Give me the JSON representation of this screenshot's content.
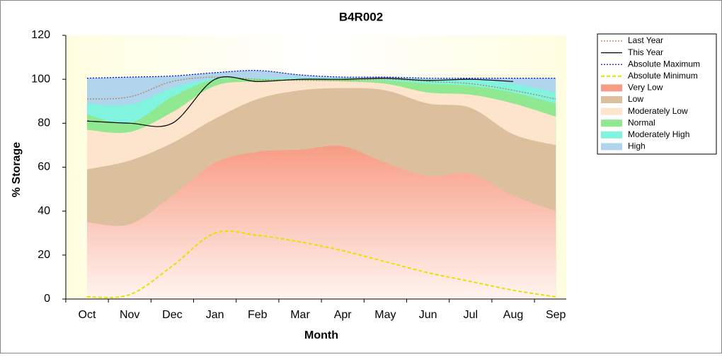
{
  "chart_data": {
    "type": "area",
    "title": "B4R002",
    "x_label": "Month",
    "y_label": "% Storage",
    "categories": [
      "Oct",
      "Nov",
      "Dec",
      "Jan",
      "Feb",
      "Mar",
      "Apr",
      "May",
      "Jun",
      "Jul",
      "Aug",
      "Sep"
    ],
    "ylim": [
      0,
      120
    ],
    "yticks": [
      0,
      20,
      40,
      60,
      80,
      100,
      120
    ],
    "series": [
      {
        "name": "Last Year",
        "kind": "line",
        "style": "dotted",
        "color": "#c07840",
        "values": [
          91,
          92,
          99,
          101,
          100,
          99.5,
          99.5,
          100,
          99,
          98,
          95,
          91
        ]
      },
      {
        "name": "This Year",
        "kind": "line",
        "style": "solid",
        "color": "#000000",
        "values": [
          81,
          80,
          80,
          100,
          99,
          100,
          100,
          100.5,
          99.5,
          100,
          99,
          null
        ]
      },
      {
        "name": "Absolute Maximum",
        "kind": "line",
        "style": "dotted",
        "color": "#0000c0",
        "values": [
          100.5,
          101,
          101.5,
          103,
          104,
          102,
          101,
          101,
          100.5,
          100.5,
          100.5,
          100.5
        ]
      },
      {
        "name": "Absolute Minimum",
        "kind": "line",
        "style": "dashed",
        "color": "#e8e000",
        "values": [
          1,
          2,
          15,
          30,
          29,
          26,
          22,
          17,
          12,
          8,
          4,
          1
        ]
      },
      {
        "name": "Very Low",
        "kind": "band",
        "color": "#f89c84",
        "values": [
          35,
          34,
          47,
          62,
          67,
          68,
          69.5,
          62,
          56,
          57,
          47,
          40
        ]
      },
      {
        "name": "Low",
        "kind": "band",
        "color": "#dcc09e",
        "values": [
          59,
          63,
          71,
          82,
          91,
          95,
          96,
          95,
          89,
          87,
          75,
          70
        ]
      },
      {
        "name": "Moderately Low",
        "kind": "band",
        "color": "#fde4cc",
        "values": [
          77,
          76,
          85,
          97,
          99,
          99.5,
          99,
          98,
          94,
          93,
          89,
          83
        ]
      },
      {
        "name": "Normal",
        "kind": "band",
        "color": "#90e890",
        "values": [
          84,
          80,
          92,
          100,
          100,
          100,
          100,
          99.5,
          98,
          97,
          94,
          89
        ]
      },
      {
        "name": "Moderately High",
        "kind": "band",
        "color": "#80f4de",
        "values": [
          89,
          88.5,
          96,
          100.5,
          100.5,
          100.5,
          100.5,
          100.5,
          100,
          100,
          98,
          94
        ]
      },
      {
        "name": "High",
        "kind": "band",
        "color": "#b0d4ec",
        "values": [
          100.5,
          101,
          101.5,
          103,
          104,
          102,
          101,
          101,
          100.5,
          100.5,
          100.5,
          100.5
        ]
      }
    ]
  }
}
